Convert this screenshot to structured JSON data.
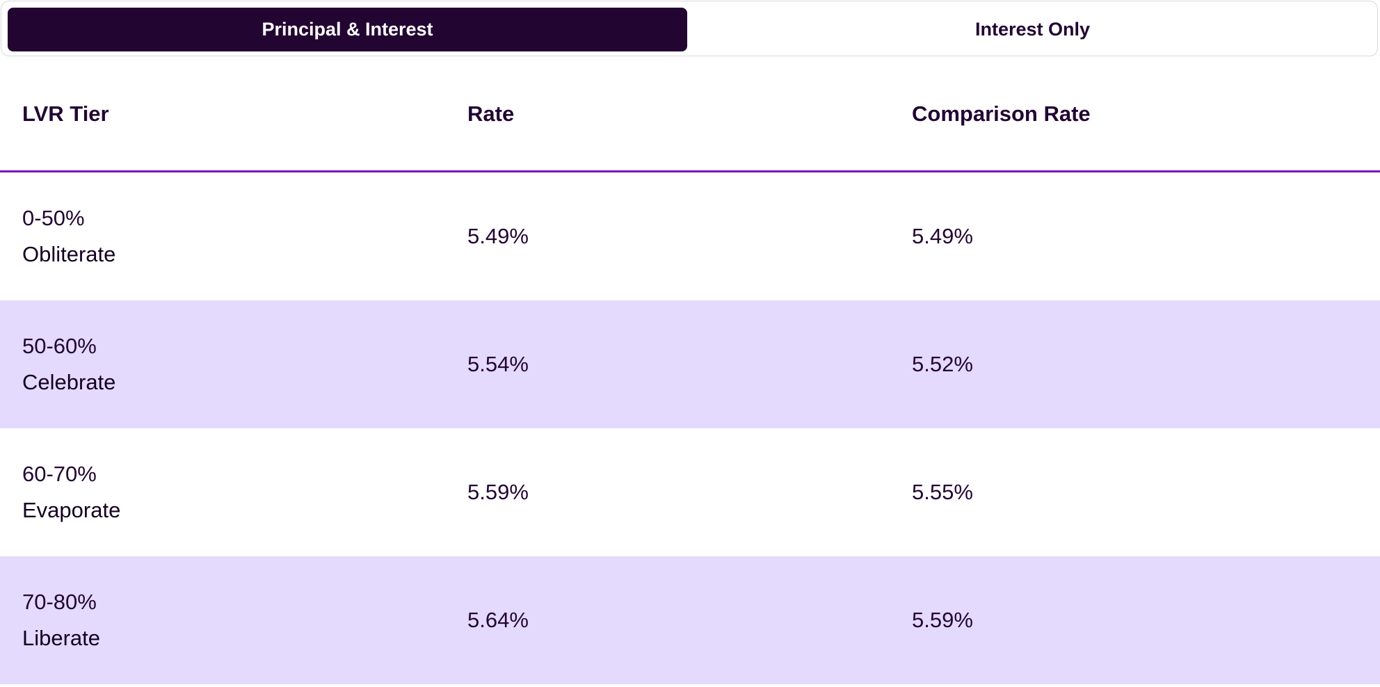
{
  "toggle": {
    "active_label": "Principal & Interest",
    "inactive_label": "Interest Only"
  },
  "table": {
    "headers": [
      "LVR Tier",
      "Rate",
      "Comparison Rate"
    ],
    "rows": [
      {
        "range": "0-50%",
        "name": "Obliterate",
        "rate": "5.49%",
        "comparison": "5.49%"
      },
      {
        "range": "50-60%",
        "name": "Celebrate",
        "rate": "5.54%",
        "comparison": "5.52%"
      },
      {
        "range": "60-70%",
        "name": "Evaporate",
        "rate": "5.59%",
        "comparison": "5.55%"
      },
      {
        "range": "70-80%",
        "name": "Liberate",
        "rate": "5.64%",
        "comparison": "5.59%"
      }
    ]
  },
  "colors": {
    "primary": "#230532",
    "accent_divider": "#7a0fbf",
    "row_alt_bg": "#e3dafd"
  }
}
